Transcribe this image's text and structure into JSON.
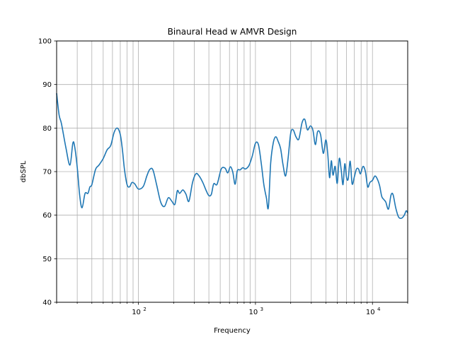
{
  "chart_data": {
    "type": "line",
    "title": "Binaural Head w AMVR Design",
    "xlabel": "Frequency",
    "ylabel": "dbSPL",
    "xscale": "log",
    "xlim": [
      20,
      20000
    ],
    "ylim": [
      40,
      100
    ],
    "grid": true,
    "yticks": [
      "40",
      "50",
      "60",
      "70",
      "80",
      "90",
      "100"
    ],
    "xtick_labels": [
      {
        "base": "10",
        "exp": "2",
        "value": 100
      },
      {
        "base": "10",
        "exp": "3",
        "value": 1000
      },
      {
        "base": "10",
        "exp": "4",
        "value": 10000
      }
    ],
    "line_color": "#1f77b4",
    "series": [
      {
        "x": [
          20,
          21,
          22,
          24,
          26,
          27.5,
          28.5,
          30,
          31.5,
          33,
          35,
          37,
          38.5,
          40,
          43,
          46,
          50,
          54,
          58,
          62,
          66,
          70,
          73,
          76,
          80,
          84,
          88,
          93,
          100,
          110,
          118,
          125,
          133,
          143,
          155,
          167,
          180,
          193,
          205,
          215,
          225,
          240,
          255,
          270,
          290,
          310,
          330,
          355,
          380,
          400,
          420,
          440,
          470,
          510,
          550,
          580,
          610,
          640,
          670,
          700,
          740,
          780,
          820,
          880,
          940,
          1000,
          1060,
          1120,
          1180,
          1240,
          1290,
          1350,
          1420,
          1490,
          1560,
          1640,
          1720,
          1810,
          1900,
          2000,
          2100,
          2220,
          2350,
          2500,
          2640,
          2780,
          2950,
          3100,
          3250,
          3400,
          3600,
          3800,
          4000,
          4150,
          4300,
          4450,
          4600,
          4800,
          5000,
          5200,
          5400,
          5600,
          5800,
          6000,
          6200,
          6450,
          6700,
          7000,
          7300,
          7600,
          7900,
          8300,
          8700,
          9100,
          9500,
          10000,
          10500,
          11000,
          11500,
          12000,
          12500,
          13000,
          13700,
          14400,
          15000,
          15800,
          16700,
          17700,
          18700,
          19400,
          20000
        ],
        "y": [
          88,
          83,
          81,
          75.5,
          71.5,
          76.5,
          75.8,
          71,
          64.5,
          61.7,
          65,
          65,
          66.5,
          67,
          70.5,
          71.5,
          73,
          75,
          76,
          79,
          80,
          78.5,
          75,
          70.5,
          67,
          66.5,
          67.5,
          67.2,
          66,
          66.6,
          69,
          70.5,
          70.4,
          67,
          63,
          62,
          64,
          63.2,
          62.5,
          65.6,
          65,
          65.8,
          64.8,
          63.2,
          67.5,
          69.5,
          69,
          67.5,
          65.6,
          64.5,
          64.8,
          67.2,
          67.1,
          70.6,
          70.8,
          69.7,
          71.1,
          69.9,
          67.1,
          70.2,
          70.4,
          70.9,
          70.6,
          71.4,
          73.6,
          76.5,
          76.2,
          72,
          67,
          64,
          61.8,
          72,
          76.6,
          78,
          77,
          75.3,
          71.6,
          69,
          73,
          78.8,
          79.6,
          78,
          77.5,
          81.2,
          82,
          79.6,
          80.5,
          79.5,
          76.2,
          79.2,
          78.5,
          74.2,
          77.3,
          74,
          68.6,
          72.5,
          69.2,
          71.2,
          67.3,
          73,
          70.5,
          67,
          71.8,
          68.7,
          68.3,
          72.4,
          67.2,
          68.8,
          70.6,
          70.6,
          69.5,
          71.2,
          70,
          66.5,
          67.5,
          68,
          69,
          68.3,
          66.8,
          64.3,
          63.6,
          63,
          61.4,
          64.6,
          64.7,
          61.7,
          59.6,
          59.3,
          60,
          61,
          60.5
        ]
      }
    ]
  }
}
